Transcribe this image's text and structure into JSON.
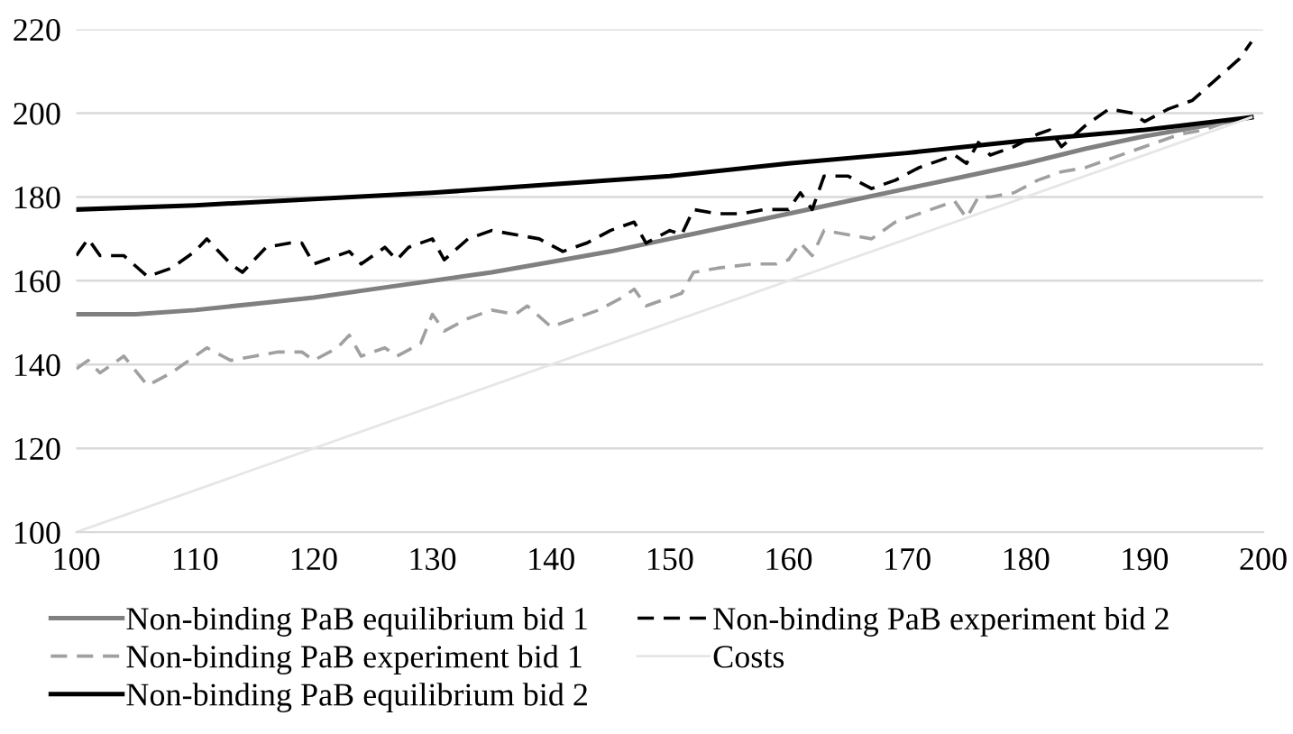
{
  "chart_data": {
    "type": "line",
    "xlim": [
      100,
      200
    ],
    "ylim": [
      100,
      220
    ],
    "xticks": [
      100,
      110,
      120,
      130,
      140,
      150,
      160,
      170,
      180,
      190,
      200
    ],
    "yticks": [
      100,
      120,
      140,
      160,
      180,
      200,
      220
    ],
    "grid": "y",
    "legend": "bottom",
    "marker": "none",
    "series": [
      {
        "name": "Non-binding PaB equilibrium bid 1",
        "color": "#808080",
        "line_style": "solid",
        "x": [
          100,
          105,
          110,
          115,
          120,
          125,
          130,
          135,
          140,
          145,
          150,
          155,
          160,
          165,
          170,
          175,
          180,
          185,
          190,
          195,
          199
        ],
        "values": [
          152,
          152,
          153,
          154.5,
          156,
          158,
          160,
          162,
          164.5,
          167,
          170,
          173,
          176,
          179,
          182,
          185,
          188,
          191.5,
          194.5,
          197,
          199
        ]
      },
      {
        "name": "Non-binding PaB experiment bid 1",
        "color": "#a0a0a0",
        "line_style": "dashed",
        "x": [
          100,
          101,
          102,
          104,
          106,
          108,
          110,
          111,
          113,
          115,
          117,
          119,
          120,
          122,
          123,
          124,
          126,
          127,
          129,
          130,
          131,
          133,
          135,
          137,
          138,
          140,
          142,
          144,
          146,
          147,
          148,
          150,
          151,
          152,
          154,
          157,
          159,
          160,
          161,
          162,
          163,
          165,
          167,
          169,
          171,
          173,
          174,
          175,
          176,
          177,
          179,
          181,
          183,
          185,
          187,
          189,
          191,
          193,
          195,
          197,
          199
        ],
        "values": [
          139,
          141,
          138,
          142,
          135,
          138,
          142,
          144,
          141,
          142,
          143,
          143,
          141,
          144,
          147,
          142,
          144,
          142,
          145,
          152,
          148,
          151,
          153,
          152,
          154,
          149,
          151,
          153,
          156,
          158,
          154,
          156,
          157,
          162,
          163,
          164,
          164,
          165,
          169,
          166,
          172,
          171,
          170,
          174,
          176,
          178,
          179,
          175,
          180,
          180,
          181,
          184,
          186,
          187,
          189,
          191,
          193,
          195,
          196,
          198,
          199
        ]
      },
      {
        "name": "Non-binding PaB equilibrium bid 2",
        "color": "#000000",
        "line_style": "solid",
        "x": [
          100,
          110,
          120,
          130,
          140,
          150,
          160,
          170,
          180,
          190,
          199
        ],
        "values": [
          177,
          178,
          179.5,
          181,
          183,
          185,
          188,
          190.5,
          193.5,
          196,
          199
        ]
      },
      {
        "name": "Non-binding PaB experiment bid 2",
        "color": "#000000",
        "line_style": "dashed",
        "x": [
          100,
          101,
          102,
          104,
          106,
          108,
          110,
          111,
          113,
          114,
          116,
          118,
          119,
          120,
          122,
          123,
          124,
          126,
          127,
          128,
          130,
          131,
          133,
          135,
          137,
          139,
          141,
          143,
          145,
          147,
          148,
          150,
          151,
          152,
          154,
          156,
          158,
          160,
          161,
          162,
          163,
          165,
          167,
          169,
          171,
          173,
          174,
          175,
          176,
          177,
          179,
          181,
          182,
          183,
          185,
          187,
          189,
          190,
          192,
          194,
          196,
          198,
          199
        ],
        "values": [
          166,
          170,
          166,
          166,
          161,
          163,
          167,
          170,
          164,
          162,
          168,
          169,
          169,
          164,
          166,
          167,
          164,
          168,
          165,
          168,
          170,
          165,
          170,
          172,
          171,
          170,
          167,
          169,
          172,
          174,
          169,
          172,
          171,
          177,
          176,
          176,
          177,
          177,
          181,
          177,
          185,
          185,
          182,
          184,
          187,
          189,
          190,
          188,
          193,
          190,
          192,
          195,
          196,
          192,
          197,
          201,
          200,
          198,
          201,
          203,
          208,
          213,
          217
        ]
      },
      {
        "name": "Costs",
        "color": "#e6e6e6",
        "line_style": "solid",
        "x": [
          100,
          199
        ],
        "values": [
          100,
          199
        ]
      }
    ]
  }
}
